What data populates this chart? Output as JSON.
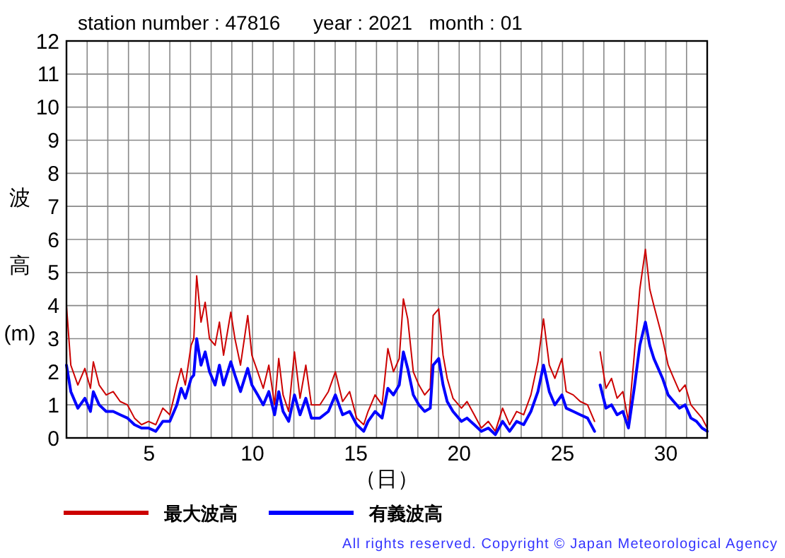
{
  "chart_data": {
    "type": "line",
    "title": "station number : 47816      year : 2021   month : 01",
    "xlabel": "（日）",
    "ylabel": "波高(m)",
    "annotations": [
      "All rights reserved. Copyright © Japan Meteorological Agency"
    ],
    "x": [
      1.0,
      1.21,
      1.55,
      1.89,
      2.16,
      2.3,
      2.58,
      2.92,
      3.26,
      3.6,
      3.95,
      4.29,
      4.63,
      4.97,
      5.32,
      5.66,
      6.0,
      6.34,
      6.55,
      6.75,
      7.03,
      7.16,
      7.3,
      7.51,
      7.71,
      7.92,
      8.19,
      8.4,
      8.6,
      8.95,
      9.15,
      9.42,
      9.77,
      9.97,
      10.25,
      10.52,
      10.79,
      11.07,
      11.27,
      11.48,
      11.75,
      12.03,
      12.3,
      12.58,
      12.85,
      13.26,
      13.67,
      14.01,
      14.36,
      14.7,
      15.04,
      15.38,
      15.59,
      15.93,
      16.27,
      16.55,
      16.82,
      17.1,
      17.3,
      17.51,
      17.78,
      18.05,
      18.33,
      18.6,
      18.74,
      19.01,
      19.22,
      19.42,
      19.7,
      20.11,
      20.38,
      20.73,
      21.07,
      21.41,
      21.75,
      22.1,
      22.44,
      22.78,
      23.12,
      23.47,
      23.81,
      24.08,
      24.36,
      24.63,
      24.97,
      25.18,
      25.52,
      25.86,
      26.21,
      26.55,
      26.68,
      26.82,
      27.1,
      27.37,
      27.64,
      27.92,
      28.19,
      28.47,
      28.74,
      29.01,
      29.22,
      29.42,
      29.63,
      29.84,
      30.11,
      30.38,
      30.66,
      30.93,
      31.21,
      31.48,
      31.75,
      32.0
    ],
    "series": [
      {
        "name": "最大波高",
        "color": "#cc0000",
        "values": [
          4.0,
          2.2,
          1.6,
          2.1,
          1.5,
          2.3,
          1.6,
          1.3,
          1.4,
          1.1,
          1.0,
          0.6,
          0.4,
          0.5,
          0.4,
          0.9,
          0.7,
          1.6,
          2.1,
          1.6,
          2.8,
          3.0,
          4.9,
          3.5,
          4.1,
          3.0,
          2.8,
          3.5,
          2.5,
          3.8,
          3.0,
          2.2,
          3.7,
          2.5,
          2.0,
          1.5,
          2.2,
          1.0,
          2.4,
          1.3,
          0.8,
          2.6,
          1.2,
          2.2,
          1.0,
          1.0,
          1.4,
          2.0,
          1.1,
          1.4,
          0.6,
          0.4,
          0.8,
          1.3,
          1.0,
          2.7,
          2.0,
          2.4,
          4.2,
          3.6,
          2.0,
          1.6,
          1.3,
          1.5,
          3.7,
          3.9,
          2.5,
          1.8,
          1.2,
          0.9,
          1.1,
          0.7,
          0.3,
          0.5,
          0.2,
          0.9,
          0.4,
          0.8,
          0.7,
          1.3,
          2.3,
          3.6,
          2.2,
          1.8,
          2.4,
          1.4,
          1.3,
          1.1,
          1.0,
          0.5,
          null,
          2.6,
          1.5,
          1.8,
          1.2,
          1.4,
          0.5,
          2.5,
          4.5,
          5.7,
          4.5,
          4.0,
          3.5,
          3.0,
          2.2,
          1.8,
          1.4,
          1.6,
          1.0,
          0.8,
          0.6,
          0.3
        ]
      },
      {
        "name": "有義波高",
        "color": "#0000ff",
        "values": [
          2.2,
          1.4,
          0.9,
          1.2,
          0.8,
          1.4,
          1.0,
          0.8,
          0.8,
          0.7,
          0.6,
          0.4,
          0.3,
          0.3,
          0.2,
          0.5,
          0.5,
          1.0,
          1.5,
          1.2,
          1.8,
          1.9,
          3.0,
          2.2,
          2.6,
          2.0,
          1.6,
          2.2,
          1.6,
          2.3,
          1.9,
          1.4,
          2.1,
          1.6,
          1.3,
          1.0,
          1.4,
          0.7,
          1.4,
          0.8,
          0.5,
          1.3,
          0.7,
          1.2,
          0.6,
          0.6,
          0.8,
          1.3,
          0.7,
          0.8,
          0.4,
          0.2,
          0.5,
          0.8,
          0.6,
          1.5,
          1.3,
          1.6,
          2.6,
          2.1,
          1.3,
          1.0,
          0.8,
          0.9,
          2.2,
          2.4,
          1.6,
          1.1,
          0.8,
          0.5,
          0.6,
          0.4,
          0.2,
          0.3,
          0.1,
          0.5,
          0.2,
          0.5,
          0.4,
          0.8,
          1.4,
          2.2,
          1.4,
          1.0,
          1.3,
          0.9,
          0.8,
          0.7,
          0.6,
          0.2,
          null,
          1.6,
          0.9,
          1.0,
          0.7,
          0.8,
          0.3,
          1.5,
          2.8,
          3.5,
          2.8,
          2.4,
          2.1,
          1.8,
          1.3,
          1.1,
          0.9,
          1.0,
          0.6,
          0.5,
          0.3,
          0.2
        ]
      }
    ],
    "xlim": [
      1,
      32
    ],
    "xticks": [
      {
        "value": 1,
        "label": null
      },
      {
        "value": 2,
        "label": null
      },
      {
        "value": 3,
        "label": null
      },
      {
        "value": 4,
        "label": null
      },
      5,
      {
        "value": 6,
        "label": null
      },
      {
        "value": 7,
        "label": null
      },
      {
        "value": 8,
        "label": null
      },
      {
        "value": 9,
        "label": null
      },
      10,
      {
        "value": 11,
        "label": null
      },
      {
        "value": 12,
        "label": null
      },
      {
        "value": 13,
        "label": null
      },
      {
        "value": 14,
        "label": null
      },
      15,
      {
        "value": 16,
        "label": null
      },
      {
        "value": 17,
        "label": null
      },
      {
        "value": 18,
        "label": null
      },
      {
        "value": 19,
        "label": null
      },
      20,
      {
        "value": 21,
        "label": null
      },
      {
        "value": 22,
        "label": null
      },
      {
        "value": 23,
        "label": null
      },
      {
        "value": 24,
        "label": null
      },
      25,
      {
        "value": 26,
        "label": null
      },
      {
        "value": 27,
        "label": null
      },
      {
        "value": 28,
        "label": null
      },
      {
        "value": 29,
        "label": null
      },
      30,
      {
        "value": 31,
        "label": null
      },
      {
        "value": 32,
        "label": null
      }
    ],
    "ylim": [
      0,
      12
    ],
    "yticks": [
      0,
      1,
      2,
      3,
      4,
      5,
      6,
      7,
      8,
      9,
      10,
      11,
      12
    ],
    "grid": true,
    "legend": "bottom",
    "marker": "none",
    "line_style": "solid"
  }
}
